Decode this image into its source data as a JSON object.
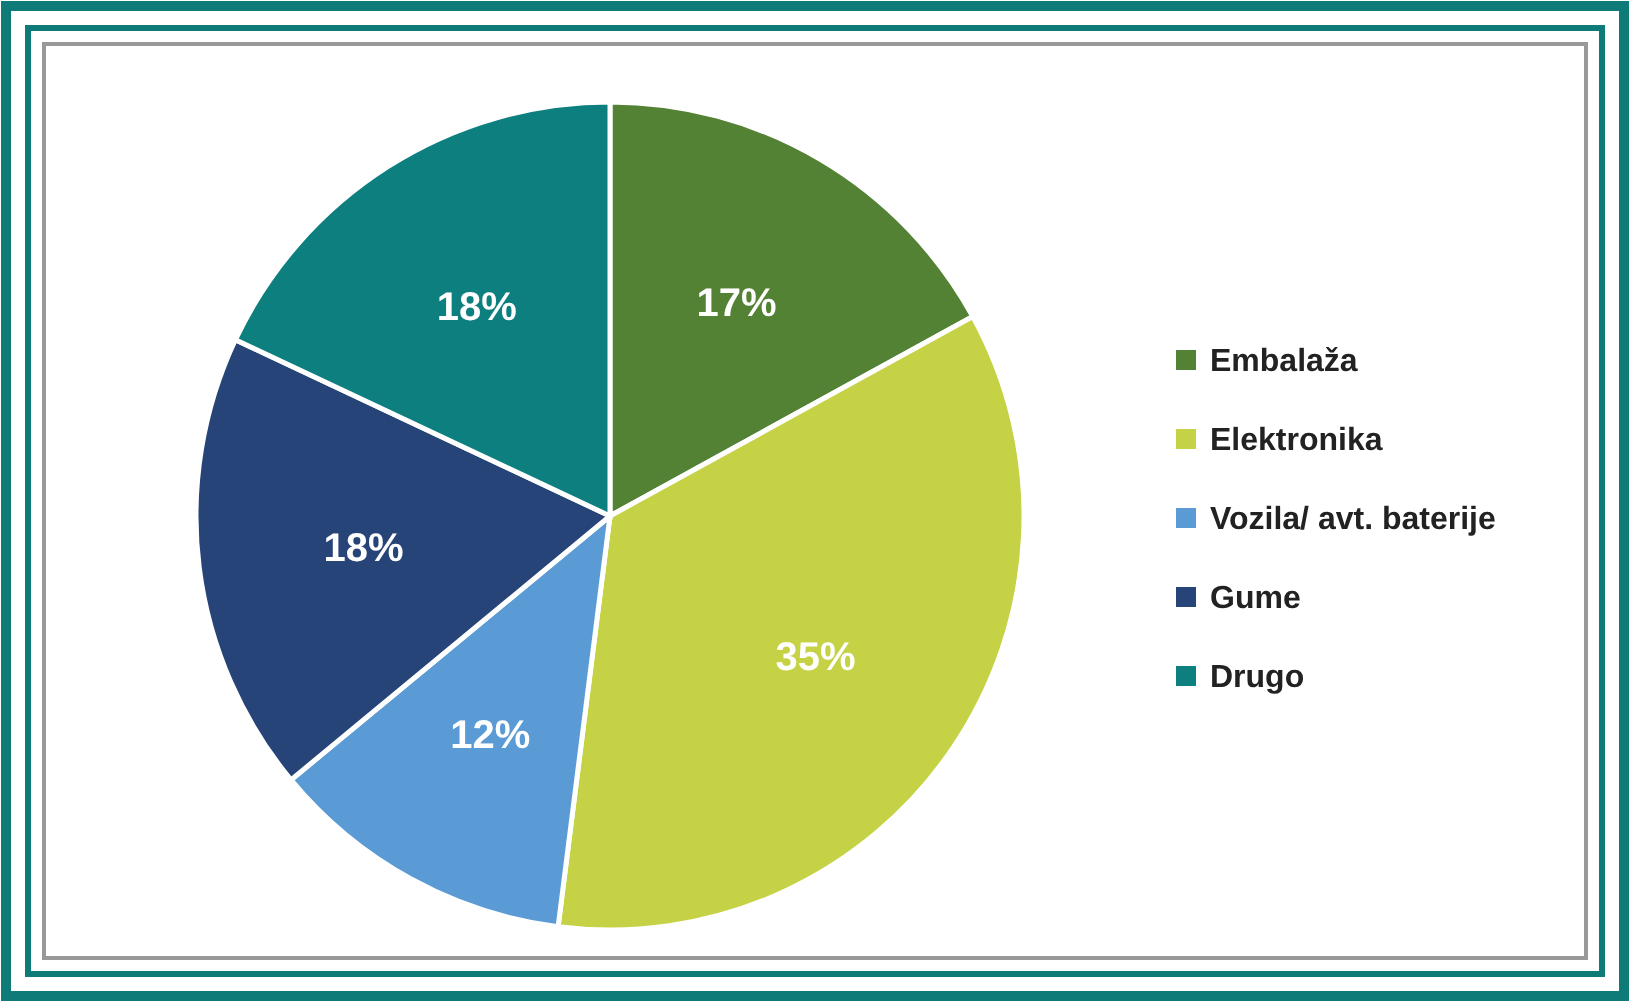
{
  "chart_data": {
    "type": "pie",
    "categories": [
      "Embalaža",
      "Elektronika",
      "Vozila/ avt. baterije",
      "Gume",
      "Drugo"
    ],
    "values": [
      17,
      35,
      12,
      18,
      18
    ],
    "value_labels": [
      "17%",
      "35%",
      "12%",
      "18%",
      "18%"
    ],
    "colors": [
      "#548235",
      "#c5d246",
      "#5b9bd5",
      "#264478",
      "#0e7f7f"
    ],
    "legend": "right"
  }
}
